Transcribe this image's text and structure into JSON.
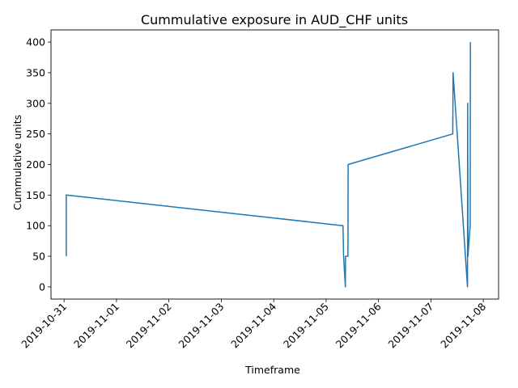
{
  "chart_data": {
    "type": "line",
    "title": "Cummulative exposure in AUD_CHF units",
    "xlabel": "Timeframe",
    "ylabel": "Cummulative units",
    "xlim": [
      "2019-10-30T18:00",
      "2019-11-08T07:00"
    ],
    "ylim": [
      -20,
      420
    ],
    "grid": false,
    "x_ticks": [
      "2019-10-31",
      "2019-11-01",
      "2019-11-02",
      "2019-11-03",
      "2019-11-04",
      "2019-11-05",
      "2019-11-06",
      "2019-11-07",
      "2019-11-08"
    ],
    "y_ticks": [
      0,
      50,
      100,
      150,
      200,
      250,
      300,
      350,
      400
    ],
    "series": [
      {
        "color": "#1f77b4",
        "points": [
          {
            "x": "2019-10-31T01:00",
            "y": 50
          },
          {
            "x": "2019-10-31T01:00",
            "y": 150
          },
          {
            "x": "2019-11-05T07:45",
            "y": 100
          },
          {
            "x": "2019-11-05T08:00",
            "y": 50
          },
          {
            "x": "2019-11-05T08:50",
            "y": 0
          },
          {
            "x": "2019-11-05T08:55",
            "y": 50
          },
          {
            "x": "2019-11-05T10:00",
            "y": 50
          },
          {
            "x": "2019-11-05T10:05",
            "y": 200
          },
          {
            "x": "2019-11-07T10:00",
            "y": 250
          },
          {
            "x": "2019-11-07T10:10",
            "y": 350
          },
          {
            "x": "2019-11-07T16:45",
            "y": 0
          },
          {
            "x": "2019-11-07T16:50",
            "y": 300
          },
          {
            "x": "2019-11-07T17:00",
            "y": 50
          },
          {
            "x": "2019-11-07T18:00",
            "y": 100
          },
          {
            "x": "2019-11-07T18:05",
            "y": 400
          }
        ]
      }
    ]
  }
}
